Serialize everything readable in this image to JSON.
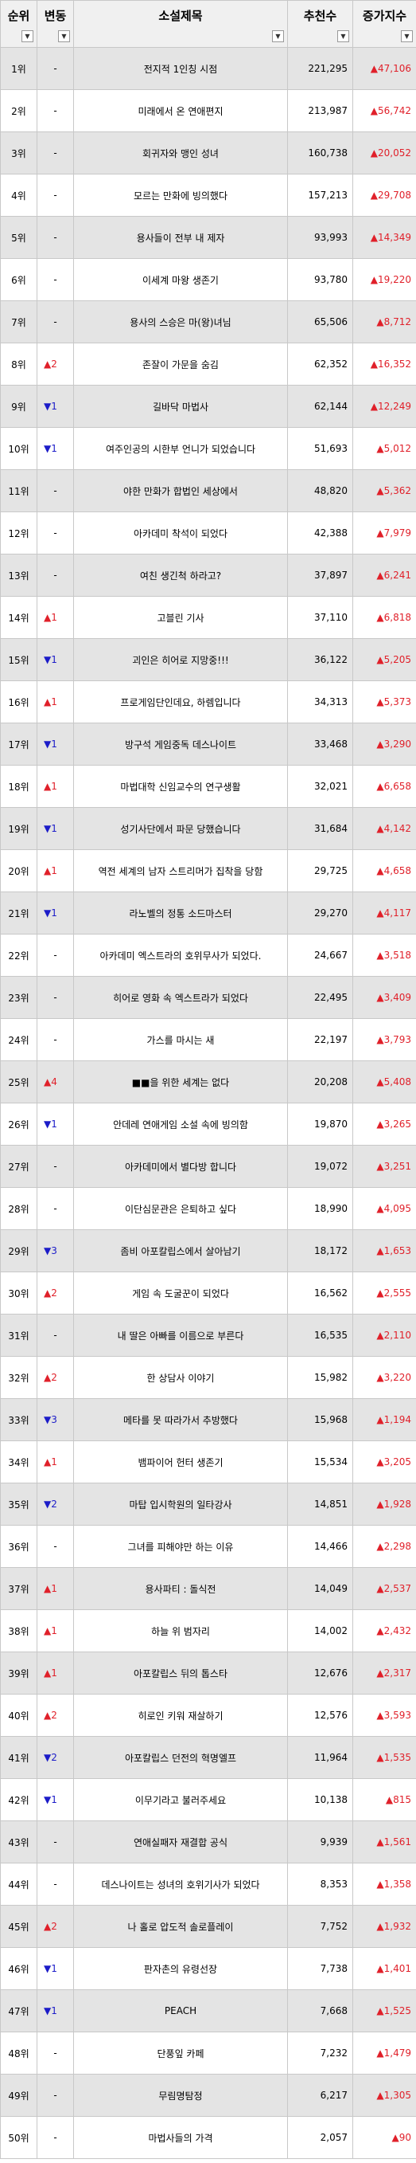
{
  "headers": [
    "순위",
    "변동",
    "소설제목",
    "추천수",
    "증가지수"
  ],
  "filter_icon": "filter-dropdown-icon",
  "colors": {
    "up": "#e0202a",
    "down": "#1c1cc8",
    "header_bg": "#f0f0f0",
    "gray_row": "#e4e4e4"
  },
  "rows": [
    {
      "rank": "1위",
      "change": "-",
      "dir": "none",
      "title": "전지적 1인칭 시점",
      "recs": "221,295",
      "inc": "▲47,106"
    },
    {
      "rank": "2위",
      "change": "-",
      "dir": "none",
      "title": "미래에서 온 연애편지",
      "recs": "213,987",
      "inc": "▲56,742"
    },
    {
      "rank": "3위",
      "change": "-",
      "dir": "none",
      "title": "회귀자와 맹인 성녀",
      "recs": "160,738",
      "inc": "▲20,052"
    },
    {
      "rank": "4위",
      "change": "-",
      "dir": "none",
      "title": "모르는 만화에 빙의했다",
      "recs": "157,213",
      "inc": "▲29,708"
    },
    {
      "rank": "5위",
      "change": "-",
      "dir": "none",
      "title": "용사들이 전부 내 제자",
      "recs": "93,993",
      "inc": "▲14,349"
    },
    {
      "rank": "6위",
      "change": "-",
      "dir": "none",
      "title": "이세계 마왕 생존기",
      "recs": "93,780",
      "inc": "▲19,220"
    },
    {
      "rank": "7위",
      "change": "-",
      "dir": "none",
      "title": "용사의 스승은 마(왕)녀님",
      "recs": "65,506",
      "inc": "▲8,712"
    },
    {
      "rank": "8위",
      "change": "▲2",
      "dir": "up",
      "title": "존잘이 가문을 숨김",
      "recs": "62,352",
      "inc": "▲16,352"
    },
    {
      "rank": "9위",
      "change": "▼1",
      "dir": "down",
      "title": "길바닥 마법사",
      "recs": "62,144",
      "inc": "▲12,249"
    },
    {
      "rank": "10위",
      "change": "▼1",
      "dir": "down",
      "title": "여주인공의 시한부 언니가 되었습니다",
      "recs": "51,693",
      "inc": "▲5,012"
    },
    {
      "rank": "11위",
      "change": "-",
      "dir": "none",
      "title": "야한 만화가 합법인 세상에서",
      "recs": "48,820",
      "inc": "▲5,362"
    },
    {
      "rank": "12위",
      "change": "-",
      "dir": "none",
      "title": "아카데미 착석이 되었다",
      "recs": "42,388",
      "inc": "▲7,979"
    },
    {
      "rank": "13위",
      "change": "-",
      "dir": "none",
      "title": "여친 생긴척 하라고?",
      "recs": "37,897",
      "inc": "▲6,241"
    },
    {
      "rank": "14위",
      "change": "▲1",
      "dir": "up",
      "title": "고블린 기사",
      "recs": "37,110",
      "inc": "▲6,818"
    },
    {
      "rank": "15위",
      "change": "▼1",
      "dir": "down",
      "title": "괴인은 히어로 지망중!!!",
      "recs": "36,122",
      "inc": "▲5,205"
    },
    {
      "rank": "16위",
      "change": "▲1",
      "dir": "up",
      "title": "프로게임단인데요, 하렘입니다",
      "recs": "34,313",
      "inc": "▲5,373"
    },
    {
      "rank": "17위",
      "change": "▼1",
      "dir": "down",
      "title": "방구석 게임중독 데스나이트",
      "recs": "33,468",
      "inc": "▲3,290"
    },
    {
      "rank": "18위",
      "change": "▲1",
      "dir": "up",
      "title": "마법대학 신임교수의 연구생활",
      "recs": "32,021",
      "inc": "▲6,658"
    },
    {
      "rank": "19위",
      "change": "▼1",
      "dir": "down",
      "title": "성기사단에서 파문 당했습니다",
      "recs": "31,684",
      "inc": "▲4,142"
    },
    {
      "rank": "20위",
      "change": "▲1",
      "dir": "up",
      "title": "역전 세계의 남자 스트리머가 집착을 당함",
      "recs": "29,725",
      "inc": "▲4,658"
    },
    {
      "rank": "21위",
      "change": "▼1",
      "dir": "down",
      "title": "라노벨의 정통 소드마스터",
      "recs": "29,270",
      "inc": "▲4,117"
    },
    {
      "rank": "22위",
      "change": "-",
      "dir": "none",
      "title": "아카데미 엑스트라의 호위무사가 되었다.",
      "recs": "24,667",
      "inc": "▲3,518"
    },
    {
      "rank": "23위",
      "change": "-",
      "dir": "none",
      "title": "히어로 영화 속 엑스트라가 되었다",
      "recs": "22,495",
      "inc": "▲3,409"
    },
    {
      "rank": "24위",
      "change": "-",
      "dir": "none",
      "title": "가스를 마시는 새",
      "recs": "22,197",
      "inc": "▲3,793"
    },
    {
      "rank": "25위",
      "change": "▲4",
      "dir": "up",
      "title": "■■을 위한 세계는 없다",
      "recs": "20,208",
      "inc": "▲5,408"
    },
    {
      "rank": "26위",
      "change": "▼1",
      "dir": "down",
      "title": "안데레 연애게임 소설 속에 빙의함",
      "recs": "19,870",
      "inc": "▲3,265"
    },
    {
      "rank": "27위",
      "change": "-",
      "dir": "none",
      "title": "아카데미에서 별다방 합니다",
      "recs": "19,072",
      "inc": "▲3,251"
    },
    {
      "rank": "28위",
      "change": "-",
      "dir": "none",
      "title": "이단심문관은 은퇴하고 싶다",
      "recs": "18,990",
      "inc": "▲4,095"
    },
    {
      "rank": "29위",
      "change": "▼3",
      "dir": "down",
      "title": "좀비 아포칼립스에서 살아남기",
      "recs": "18,172",
      "inc": "▲1,653"
    },
    {
      "rank": "30위",
      "change": "▲2",
      "dir": "up",
      "title": "게임 속 도굴꾼이 되었다",
      "recs": "16,562",
      "inc": "▲2,555"
    },
    {
      "rank": "31위",
      "change": "-",
      "dir": "none",
      "title": "내 딸은 아빠를 이름으로 부른다",
      "recs": "16,535",
      "inc": "▲2,110"
    },
    {
      "rank": "32위",
      "change": "▲2",
      "dir": "up",
      "title": "한 상담사 이야기",
      "recs": "15,982",
      "inc": "▲3,220"
    },
    {
      "rank": "33위",
      "change": "▼3",
      "dir": "down",
      "title": "메타를 못 따라가서 추방했다",
      "recs": "15,968",
      "inc": "▲1,194"
    },
    {
      "rank": "34위",
      "change": "▲1",
      "dir": "up",
      "title": "뱀파이어 헌터 생존기",
      "recs": "15,534",
      "inc": "▲3,205"
    },
    {
      "rank": "35위",
      "change": "▼2",
      "dir": "down",
      "title": "마탑 입시학원의 일타강사",
      "recs": "14,851",
      "inc": "▲1,928"
    },
    {
      "rank": "36위",
      "change": "-",
      "dir": "none",
      "title": "그녀를 피해야만 하는 이유",
      "recs": "14,466",
      "inc": "▲2,298"
    },
    {
      "rank": "37위",
      "change": "▲1",
      "dir": "up",
      "title": "용사파티 : 돌식전",
      "recs": "14,049",
      "inc": "▲2,537"
    },
    {
      "rank": "38위",
      "change": "▲1",
      "dir": "up",
      "title": "하늘 위 범자리",
      "recs": "14,002",
      "inc": "▲2,432"
    },
    {
      "rank": "39위",
      "change": "▲1",
      "dir": "up",
      "title": "아포칼립스 뒤의 톱스타",
      "recs": "12,676",
      "inc": "▲2,317"
    },
    {
      "rank": "40위",
      "change": "▲2",
      "dir": "up",
      "title": "히로인 키워 재살하기",
      "recs": "12,576",
      "inc": "▲3,593"
    },
    {
      "rank": "41위",
      "change": "▼2",
      "dir": "down",
      "title": "아포칼립스 던전의 혁명엘프",
      "recs": "11,964",
      "inc": "▲1,535"
    },
    {
      "rank": "42위",
      "change": "▼1",
      "dir": "down",
      "title": "이무기라고 불러주세요",
      "recs": "10,138",
      "inc": "▲815"
    },
    {
      "rank": "43위",
      "change": "-",
      "dir": "none",
      "title": "연애실패자 재결합 공식",
      "recs": "9,939",
      "inc": "▲1,561"
    },
    {
      "rank": "44위",
      "change": "-",
      "dir": "none",
      "title": "데스나이트는 성녀의 호위기사가 되었다",
      "recs": "8,353",
      "inc": "▲1,358"
    },
    {
      "rank": "45위",
      "change": "▲2",
      "dir": "up",
      "title": "나 홀로 압도적 솔로플레이",
      "recs": "7,752",
      "inc": "▲1,932"
    },
    {
      "rank": "46위",
      "change": "▼1",
      "dir": "down",
      "title": "판자촌의 유령선장",
      "recs": "7,738",
      "inc": "▲1,401"
    },
    {
      "rank": "47위",
      "change": "▼1",
      "dir": "down",
      "title": "PEACH",
      "recs": "7,668",
      "inc": "▲1,525"
    },
    {
      "rank": "48위",
      "change": "-",
      "dir": "none",
      "title": "단풍잎 카페",
      "recs": "7,232",
      "inc": "▲1,479"
    },
    {
      "rank": "49위",
      "change": "-",
      "dir": "none",
      "title": "무림명탐정",
      "recs": "6,217",
      "inc": "▲1,305"
    },
    {
      "rank": "50위",
      "change": "-",
      "dir": "none",
      "title": "마법사들의 가격",
      "recs": "2,057",
      "inc": "▲90"
    }
  ]
}
